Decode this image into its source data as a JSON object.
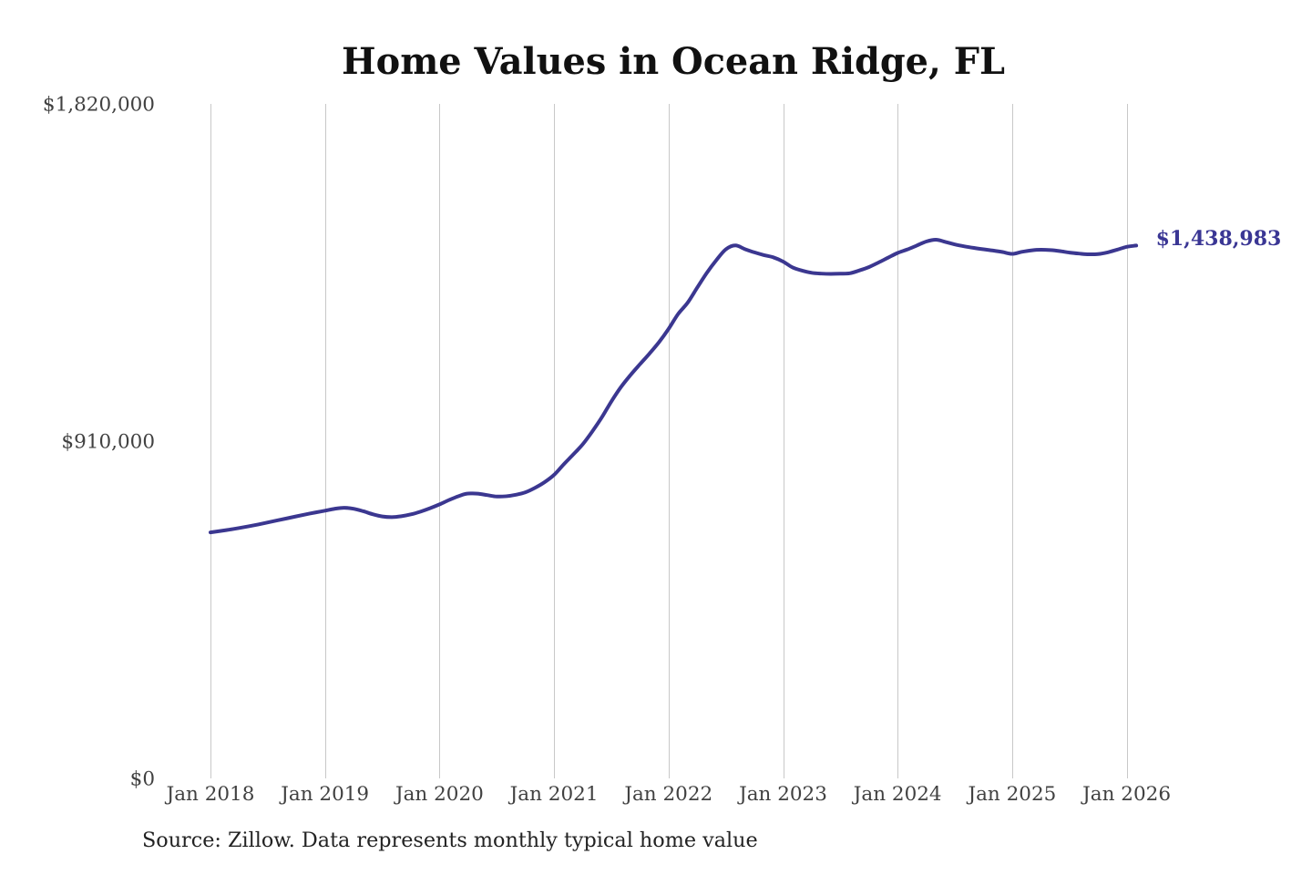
{
  "chart_data": {
    "type": "line",
    "title": "Home Values in Ocean Ridge, FL",
    "source": "Source: Zillow. Data represents monthly typical home value",
    "end_label": "$1,438,983",
    "latest_value": 1438983,
    "ylim": [
      0,
      1820000
    ],
    "grid": "vertical-only",
    "legend": "none",
    "line_color": "#3b3790",
    "gridline_color": "#c8c8c8",
    "tick_color": "#414141",
    "y_ticks": [
      {
        "label": "$1,820,000",
        "value": 1820000
      },
      {
        "label": "$910,000",
        "value": 910000
      },
      {
        "label": "$0",
        "value": 0
      }
    ],
    "x_tick_labels": [
      "Jan 2018",
      "Jan 2019",
      "Jan 2020",
      "Jan 2021",
      "Jan 2022",
      "Jan 2023",
      "Jan 2024",
      "Jan 2025",
      "Jan 2026"
    ],
    "months": [
      "Jan 2018",
      "Feb 2018",
      "Mar 2018",
      "Apr 2018",
      "May 2018",
      "Jun 2018",
      "Jul 2018",
      "Aug 2018",
      "Sep 2018",
      "Oct 2018",
      "Nov 2018",
      "Dec 2018",
      "Jan 2019",
      "Feb 2019",
      "Mar 2019",
      "Apr 2019",
      "May 2019",
      "Jun 2019",
      "Jul 2019",
      "Aug 2019",
      "Sep 2019",
      "Oct 2019",
      "Nov 2019",
      "Dec 2019",
      "Jan 2020",
      "Feb 2020",
      "Mar 2020",
      "Apr 2020",
      "May 2020",
      "Jun 2020",
      "Jul 2020",
      "Aug 2020",
      "Sep 2020",
      "Oct 2020",
      "Nov 2020",
      "Dec 2020",
      "Jan 2021",
      "Feb 2021",
      "Mar 2021",
      "Apr 2021",
      "May 2021",
      "Jun 2021",
      "Jul 2021",
      "Aug 2021",
      "Sep 2021",
      "Oct 2021",
      "Nov 2021",
      "Dec 2021",
      "Jan 2022",
      "Feb 2022",
      "Mar 2022",
      "Apr 2022",
      "May 2022",
      "Jun 2022",
      "Jul 2022",
      "Aug 2022",
      "Sep 2022",
      "Oct 2022",
      "Nov 2022",
      "Dec 2022",
      "Jan 2023",
      "Feb 2023",
      "Mar 2023",
      "Apr 2023",
      "May 2023",
      "Jun 2023",
      "Jul 2023",
      "Aug 2023",
      "Sep 2023",
      "Oct 2023",
      "Nov 2023",
      "Dec 2023",
      "Jan 2024",
      "Feb 2024",
      "Mar 2024",
      "Apr 2024",
      "May 2024",
      "Jun 2024",
      "Jul 2024",
      "Aug 2024",
      "Sep 2024",
      "Oct 2024",
      "Nov 2024",
      "Dec 2024",
      "Jan 2025",
      "Feb 2025",
      "Mar 2025",
      "Apr 2025",
      "May 2025",
      "Jun 2025",
      "Jul 2025",
      "Aug 2025",
      "Sep 2025",
      "Oct 2025",
      "Nov 2025",
      "Dec 2025",
      "Jan 2026",
      "Feb 2026"
    ],
    "values": [
      665000,
      668600,
      672500,
      676800,
      681400,
      686400,
      691800,
      697300,
      702800,
      708300,
      713700,
      718800,
      723600,
      728600,
      731500,
      728800,
      722200,
      714000,
      708000,
      706200,
      708600,
      713600,
      721000,
      730200,
      740600,
      752400,
      762800,
      769900,
      769600,
      765600,
      761800,
      762600,
      766600,
      773200,
      785200,
      800400,
      820200,
      848300,
      874800,
      902600,
      937100,
      975200,
      1018200,
      1056800,
      1089300,
      1118800,
      1147600,
      1178300,
      1214000,
      1254300,
      1284800,
      1325400,
      1365000,
      1399400,
      1428700,
      1439300,
      1429400,
      1420600,
      1413200,
      1407000,
      1395800,
      1379800,
      1371400,
      1365500,
      1363300,
      1362500,
      1363000,
      1364200,
      1371900,
      1381000,
      1393300,
      1406300,
      1419100,
      1428200,
      1439000,
      1449900,
      1454800,
      1448900,
      1442000,
      1436800,
      1432600,
      1428900,
      1425500,
      1421500,
      1416600,
      1422000,
      1426000,
      1427700,
      1426700,
      1424000,
      1420100,
      1417400,
      1415400,
      1416100,
      1420600,
      1427900,
      1435600,
      1438983
    ]
  }
}
